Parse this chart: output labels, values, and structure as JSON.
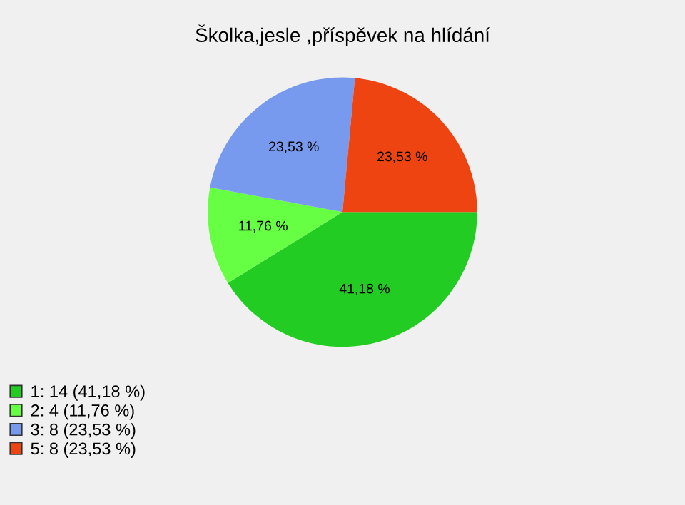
{
  "chart_data": {
    "type": "pie",
    "title": "Školka,jesle ,příspěvek na hlídání",
    "categories": [
      "1: 14 (41,18 %)",
      "2: 4 (11,76 %)",
      "3: 8 (23,53 %)",
      "5: 8 (23,53 %)"
    ],
    "values": [
      41.18,
      11.76,
      23.53,
      23.53
    ],
    "colors": [
      "#22cc22",
      "#66ff44",
      "#7799ee",
      "#ee4411"
    ],
    "value_labels": [
      "41,18 %",
      "11,76 %",
      "23,53 %",
      "23,53 %"
    ],
    "legend": "bottom left"
  }
}
